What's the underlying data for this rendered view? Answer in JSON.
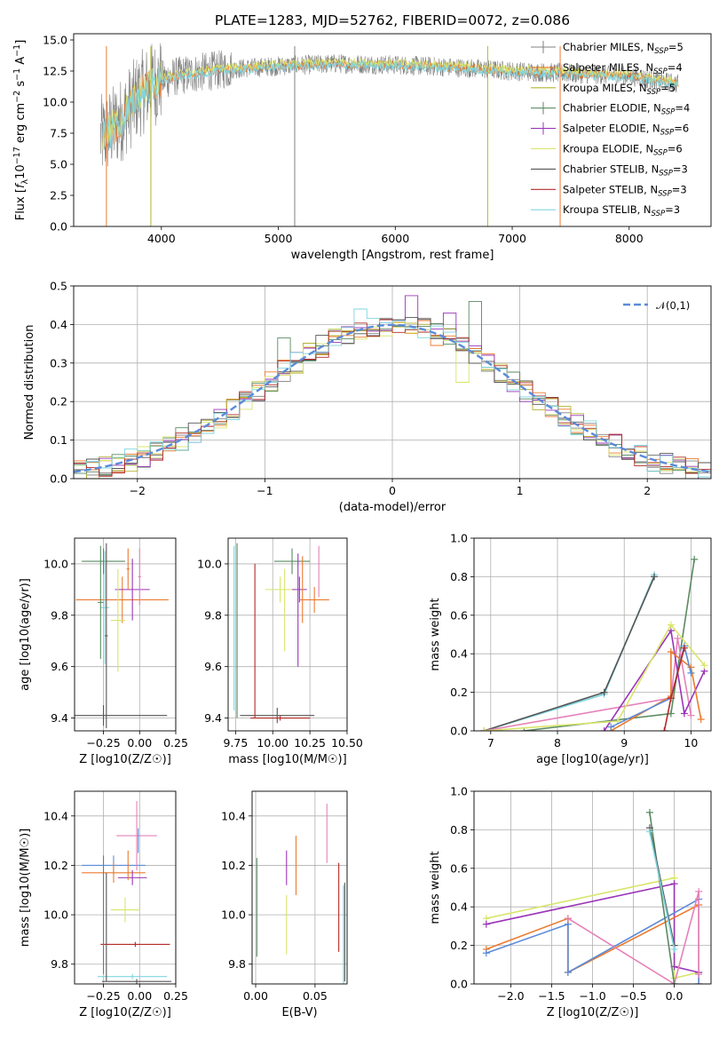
{
  "title": "PLATE=1283, MJD=52762, FIBERID=0072, z=0.086",
  "colors": {
    "gray": "#808080",
    "orange": "#ec7a2e",
    "olive": "#b5b331",
    "green": "#5a8a62",
    "purple": "#9a35b9",
    "yellow": "#d8e56a",
    "dark": "#555555",
    "red": "#b22a26",
    "cyan": "#7fd6df",
    "blue": "#5b8bd8",
    "pink": "#e581b9"
  },
  "legend": [
    {
      "label": "Chabrier MILES, N",
      "sub": "SSP",
      "tail": "=5",
      "color": "#808080",
      "marker": "plus"
    },
    {
      "label": "Salpeter MILES, N",
      "sub": "SSP",
      "tail": "=4",
      "color": "#ec7a2e",
      "marker": "line"
    },
    {
      "label": "Kroupa MILES, N",
      "sub": "SSP",
      "tail": "=5",
      "color": "#b5b331",
      "marker": "line"
    },
    {
      "label": "Chabrier ELODIE, N",
      "sub": "SSP",
      "tail": "=4",
      "color": "#5a8a62",
      "marker": "plus"
    },
    {
      "label": "Salpeter ELODIE, N",
      "sub": "SSP",
      "tail": "=6",
      "color": "#9a35b9",
      "marker": "plus"
    },
    {
      "label": "Kroupa ELODIE, N",
      "sub": "SSP",
      "tail": "=6",
      "color": "#d8e56a",
      "marker": "line"
    },
    {
      "label": "Chabrier STELIB, N",
      "sub": "SSP",
      "tail": "=3",
      "color": "#555555",
      "marker": "line"
    },
    {
      "label": "Salpeter STELIB, N",
      "sub": "SSP",
      "tail": "=3",
      "color": "#b22a26",
      "marker": "line"
    },
    {
      "label": "Kroupa STELIB, N",
      "sub": "SSP",
      "tail": "=3",
      "color": "#7fd6df",
      "marker": "line"
    }
  ],
  "chart_data": [
    {
      "type": "line",
      "panel": "spectrum",
      "xlabel": "wavelength [Angstrom, rest frame]",
      "ylabel": "Flux [f_λ 10^-17 erg cm^-2 s^-1 A^-1]",
      "ylabel_parts": [
        "Flux [",
        "f",
        "λ",
        "10",
        "−17",
        " erg cm",
        "−2",
        " s",
        "−1",
        " A",
        "−1",
        "]"
      ],
      "xlim": [
        3250,
        8700
      ],
      "ylim": [
        0,
        15.5
      ],
      "xticks": [
        4000,
        5000,
        6000,
        7000,
        8000
      ],
      "yticks": [
        "0.0",
        "2.5",
        "5.0",
        "7.5",
        "10.0",
        "12.5",
        "15.0"
      ],
      "ytick_values": [
        0,
        2.5,
        5,
        7.5,
        10,
        12.5,
        15
      ],
      "continuum": {
        "x": [
          3500,
          3650,
          3800,
          3900,
          4000,
          4200,
          4500,
          5000,
          5500,
          6000,
          6500,
          7000,
          7500,
          8000,
          8400
        ],
        "y": [
          7.2,
          8.5,
          10.5,
          11.3,
          11.8,
          12.2,
          12.6,
          12.9,
          13.1,
          13.0,
          12.8,
          12.5,
          12.3,
          12.1,
          11.5
        ]
      },
      "spikes": [
        {
          "x": 3530,
          "y": 0,
          "color": "#ec7a2e"
        },
        {
          "x": 3910,
          "y": 0,
          "color": "#b5b331"
        },
        {
          "x": 5140,
          "y": 0,
          "color": "#808080"
        },
        {
          "x": 6790,
          "y": 0,
          "color": "#b5b331"
        },
        {
          "x": 7410,
          "y": 0,
          "color": "#ec7a2e"
        }
      ]
    },
    {
      "type": "histogram",
      "panel": "residuals",
      "xlabel": "(data-model)/error",
      "ylabel": "Normed distribution",
      "xlim": [
        -2.5,
        2.5
      ],
      "ylim": [
        0,
        0.5
      ],
      "xticks": [
        "−2",
        "−1",
        "0",
        "1",
        "2"
      ],
      "xtick_values": [
        -2,
        -1,
        0,
        1,
        2
      ],
      "yticks": [
        "0.0",
        "0.1",
        "0.2",
        "0.3",
        "0.4",
        "0.5"
      ],
      "ytick_values": [
        0,
        0.1,
        0.2,
        0.3,
        0.4,
        0.5
      ],
      "bin_width": 0.1,
      "reference_curve": {
        "name": "𝒩(0,1)",
        "mu": 0,
        "sigma": 1,
        "color": "#5b8bd8"
      },
      "series_colors": [
        "#808080",
        "#ec7a2e",
        "#b5b331",
        "#5a8a62",
        "#9a35b9",
        "#d8e56a",
        "#555555",
        "#b22a26",
        "#7fd6df"
      ],
      "highlights": [
        {
          "x": -0.85,
          "y": 0.365,
          "color": "#5a8a62"
        },
        {
          "x": 0.15,
          "y": 0.475,
          "color": "#9a35b9"
        },
        {
          "x": 0.65,
          "y": 0.46,
          "color": "#5a8a62"
        },
        {
          "x": 0.45,
          "y": 0.43,
          "color": "#9a35b9"
        },
        {
          "x": -0.25,
          "y": 0.44,
          "color": "#7fd6df"
        },
        {
          "x": 0.55,
          "y": 0.25,
          "color": "#d8e56a"
        },
        {
          "x": 0.85,
          "y": 0.25,
          "color": "#9a35b9"
        }
      ]
    },
    {
      "type": "scatter",
      "panel": "age-vs-Z",
      "xlabel": "Z [log10(Z/Z☉)]",
      "ylabel": "age  [log10(age/yr)]",
      "xlim": [
        -0.45,
        0.25
      ],
      "ylim": [
        9.35,
        10.1
      ],
      "xticks": [
        "−0.25",
        "0.00",
        "0.25"
      ],
      "xtick_values": [
        -0.25,
        0,
        0.25
      ],
      "yticks": [
        "9.4",
        "9.6",
        "9.8",
        "10.0"
      ],
      "ytick_values": [
        9.4,
        9.6,
        9.8,
        10.0
      ],
      "errorbars": [
        {
          "x": -0.25,
          "y": 10.01,
          "xerr": 0.15,
          "yerr": 0.05,
          "color": "#5a8a62"
        },
        {
          "x": -0.25,
          "y": 9.41,
          "xerr": 0.44,
          "yerr": 0.04,
          "color": "#555555"
        },
        {
          "x": -0.12,
          "y": 9.86,
          "xerr": 0.32,
          "yerr": 0.09,
          "color": "#ec7a2e"
        },
        {
          "x": -0.05,
          "y": 9.9,
          "xerr": 0.12,
          "yerr": 0.12,
          "color": "#9a35b9"
        },
        {
          "x": -0.15,
          "y": 9.78,
          "xerr": 0.05,
          "yerr": 0.2,
          "color": "#d8e56a"
        },
        {
          "x": -0.24,
          "y": 9.83,
          "xerr": 0.03,
          "yerr": 0.22,
          "color": "#7fd6df"
        },
        {
          "x": -0.27,
          "y": 9.85,
          "xerr": 0.02,
          "yerr": 0.22,
          "color": "#5a8a62"
        },
        {
          "x": -0.23,
          "y": 9.72,
          "xerr": 0.01,
          "yerr": 0.36,
          "color": "#555555"
        },
        {
          "x": -0.08,
          "y": 9.98,
          "xerr": 0.01,
          "yerr": 0.08,
          "color": "#ec7a2e"
        },
        {
          "x": 0.0,
          "y": 9.95,
          "xerr": 0.01,
          "yerr": 0.11,
          "color": "#e581b9"
        }
      ]
    },
    {
      "type": "scatter",
      "panel": "age-vs-mass",
      "xlabel": "mass [log10(M/M☉)]",
      "xlim": [
        9.7,
        10.5
      ],
      "ylim": [
        9.35,
        10.1
      ],
      "xticks": [
        "9.75",
        "10.00",
        "10.25",
        "10.50"
      ],
      "xtick_values": [
        9.75,
        10.0,
        10.25,
        10.5
      ],
      "yticks": [
        "9.4",
        "9.6",
        "9.8",
        "10.0"
      ],
      "ytick_values": [
        9.4,
        9.6,
        9.8,
        10.0
      ],
      "errorbars": [
        {
          "x": 10.03,
          "y": 9.41,
          "xerr": 0.25,
          "yerr": 0.03,
          "color": "#555555"
        },
        {
          "x": 10.05,
          "y": 9.4,
          "xerr": 0.2,
          "yerr": 0.01,
          "color": "#b22a26"
        },
        {
          "x": 10.13,
          "y": 10.01,
          "xerr": 0.12,
          "yerr": 0.05,
          "color": "#5a8a62"
        },
        {
          "x": 10.05,
          "y": 9.9,
          "xerr": 0.1,
          "yerr": 0.05,
          "color": "#d8e56a"
        },
        {
          "x": 10.18,
          "y": 9.9,
          "xerr": 0.05,
          "yerr": 0.05,
          "color": "#9a35b9"
        },
        {
          "x": 10.28,
          "y": 9.86,
          "xerr": 0.1,
          "yerr": 0.05,
          "color": "#ec7a2e"
        },
        {
          "x": 9.74,
          "y": 9.75,
          "xerr": 0.0,
          "yerr": 0.32,
          "color": "#7fd6df"
        },
        {
          "x": 9.76,
          "y": 9.74,
          "xerr": 0.0,
          "yerr": 0.34,
          "color": "#5a8a62"
        },
        {
          "x": 9.88,
          "y": 9.7,
          "xerr": 0.0,
          "yerr": 0.3,
          "color": "#b22a26"
        },
        {
          "x": 10.08,
          "y": 9.82,
          "xerr": 0.0,
          "yerr": 0.16,
          "color": "#d8e56a"
        },
        {
          "x": 10.17,
          "y": 9.82,
          "xerr": 0.0,
          "yerr": 0.22,
          "color": "#9a35b9"
        },
        {
          "x": 10.2,
          "y": 9.9,
          "xerr": 0.0,
          "yerr": 0.13,
          "color": "#ec7a2e"
        },
        {
          "x": 10.31,
          "y": 9.97,
          "xerr": 0.0,
          "yerr": 0.1,
          "color": "#e581b9"
        }
      ]
    },
    {
      "type": "line",
      "panel": "weight-vs-age",
      "xlabel": "age  [log10(age/yr)]",
      "ylabel": "mass weight",
      "xlim": [
        6.75,
        10.3
      ],
      "ylim": [
        0,
        1
      ],
      "xticks": [
        "7",
        "8",
        "9",
        "10"
      ],
      "xtick_values": [
        7,
        8,
        9,
        10
      ],
      "yticks": [
        "0.0",
        "0.2",
        "0.4",
        "0.6",
        "0.8",
        "1.0"
      ],
      "ytick_values": [
        0,
        0.2,
        0.4,
        0.6,
        0.8,
        1.0
      ],
      "series": [
        {
          "color": "#7fd6df",
          "x": [
            6.9,
            8.7,
            9.45
          ],
          "y": [
            0.0,
            0.19,
            0.81
          ]
        },
        {
          "color": "#555555",
          "x": [
            6.9,
            8.7,
            9.45
          ],
          "y": [
            0.0,
            0.2,
            0.8
          ]
        },
        {
          "color": "#5a8a62",
          "x": [
            7.5,
            9.7,
            10.05
          ],
          "y": [
            0.0,
            0.09,
            0.89
          ]
        },
        {
          "color": "#e581b9",
          "x": [
            6.9,
            9.7,
            9.8,
            10.0
          ],
          "y": [
            0.0,
            0.17,
            0.48,
            0.08
          ]
        },
        {
          "color": "#9a35b9",
          "x": [
            8.7,
            9.7,
            9.9,
            10.2
          ],
          "y": [
            0.0,
            0.52,
            0.09,
            0.31
          ]
        },
        {
          "color": "#d8e56a",
          "x": [
            6.9,
            8.9,
            9.7,
            10.2
          ],
          "y": [
            0.0,
            0.05,
            0.55,
            0.34
          ]
        },
        {
          "color": "#ec7a2e",
          "x": [
            8.8,
            9.7,
            9.7,
            10.0,
            10.15
          ],
          "y": [
            0.0,
            0.18,
            0.41,
            0.33,
            0.06
          ]
        },
        {
          "color": "#5b8bd8",
          "x": [
            8.8,
            9.7,
            9.9,
            10.0
          ],
          "y": [
            0.02,
            0.17,
            0.44,
            0.3
          ]
        },
        {
          "color": "#b22a26",
          "x": [
            9.6,
            9.7,
            9.9
          ],
          "y": [
            0.0,
            0.17,
            0.43
          ]
        }
      ]
    },
    {
      "type": "scatter",
      "panel": "mass-vs-Z",
      "xlabel": "Z [log10(Z/Z☉)]",
      "ylabel": "mass [log10(M/M☉)]",
      "xlim": [
        -0.45,
        0.25
      ],
      "ylim": [
        9.72,
        10.5
      ],
      "xticks": [
        "−0.25",
        "0.00",
        "0.25"
      ],
      "xtick_values": [
        -0.25,
        0,
        0.25
      ],
      "yticks": [
        "9.8",
        "10.0",
        "10.2",
        "10.4"
      ],
      "ytick_values": [
        9.8,
        10.0,
        10.2,
        10.4
      ],
      "errorbars": [
        {
          "x": -0.18,
          "y": 10.2,
          "xerr": 0.22,
          "yerr": 0.04,
          "color": "#5b8bd8"
        },
        {
          "x": -0.18,
          "y": 10.17,
          "xerr": 0.22,
          "yerr": 0.04,
          "color": "#ec7a2e"
        },
        {
          "x": -0.05,
          "y": 10.15,
          "xerr": 0.1,
          "yerr": 0.03,
          "color": "#9a35b9"
        },
        {
          "x": -0.02,
          "y": 10.32,
          "xerr": 0.14,
          "yerr": 0.14,
          "color": "#e581b9"
        },
        {
          "x": -0.1,
          "y": 10.02,
          "xerr": 0.1,
          "yerr": 0.05,
          "color": "#d8e56a"
        },
        {
          "x": -0.03,
          "y": 9.88,
          "xerr": 0.24,
          "yerr": 0.01,
          "color": "#b22a26"
        },
        {
          "x": -0.05,
          "y": 9.75,
          "xerr": 0.24,
          "yerr": 0.01,
          "color": "#7fd6df"
        },
        {
          "x": -0.02,
          "y": 9.73,
          "xerr": 0.24,
          "yerr": 0.01,
          "color": "#555555"
        },
        {
          "x": -0.25,
          "y": 10.0,
          "xerr": 0.0,
          "yerr": 0.24,
          "color": "#5a8a62"
        },
        {
          "x": -0.23,
          "y": 9.95,
          "xerr": 0.0,
          "yerr": 0.22,
          "color": "#555555"
        },
        {
          "x": -0.08,
          "y": 10.2,
          "xerr": 0.0,
          "yerr": 0.06,
          "color": "#ec7a2e"
        },
        {
          "x": -0.01,
          "y": 10.3,
          "xerr": 0.0,
          "yerr": 0.05,
          "color": "#5b8bd8"
        }
      ]
    },
    {
      "type": "scatter",
      "panel": "mass-vs-EBV",
      "xlabel": "E(B-V)",
      "xlim": [
        -0.003,
        0.077
      ],
      "ylim": [
        9.72,
        10.5
      ],
      "xticks": [
        "0.00",
        "0.05"
      ],
      "xtick_values": [
        0,
        0.05
      ],
      "yticks": [
        "9.8",
        "10.0",
        "10.2",
        "10.4"
      ],
      "ytick_values": [
        9.8,
        10.0,
        10.2,
        10.4
      ],
      "errorbars": [
        {
          "x": 0.001,
          "y": 10.03,
          "xerr": 0,
          "yerr": 0.2,
          "color": "#5a8a62"
        },
        {
          "x": 0.026,
          "y": 10.19,
          "xerr": 0,
          "yerr": 0.07,
          "color": "#9a35b9"
        },
        {
          "x": 0.026,
          "y": 9.96,
          "xerr": 0,
          "yerr": 0.12,
          "color": "#d8e56a"
        },
        {
          "x": 0.034,
          "y": 10.2,
          "xerr": 0,
          "yerr": 0.12,
          "color": "#ec7a2e"
        },
        {
          "x": 0.06,
          "y": 10.33,
          "xerr": 0,
          "yerr": 0.12,
          "color": "#e581b9"
        },
        {
          "x": 0.07,
          "y": 10.03,
          "xerr": 0,
          "yerr": 0.18,
          "color": "#b22a26"
        },
        {
          "x": 0.074,
          "y": 9.92,
          "xerr": 0,
          "yerr": 0.2,
          "color": "#7fd6df"
        },
        {
          "x": 0.075,
          "y": 9.93,
          "xerr": 0,
          "yerr": 0.2,
          "color": "#555555"
        }
      ]
    },
    {
      "type": "line",
      "panel": "weight-vs-Z",
      "xlabel": "Z [log10(Z/Z☉)]",
      "ylabel": "mass weight",
      "xlim": [
        -2.45,
        0.45
      ],
      "ylim": [
        0,
        1
      ],
      "xticks": [
        "−2.0",
        "−1.5",
        "−1.0",
        "−0.5",
        "0.0"
      ],
      "xtick_values": [
        -2.0,
        -1.5,
        -1.0,
        -0.5,
        0.0
      ],
      "yticks": [
        "0.0",
        "0.2",
        "0.4",
        "0.6",
        "0.8",
        "1.0"
      ],
      "ytick_values": [
        0,
        0.2,
        0.4,
        0.6,
        0.8,
        1.0
      ],
      "series": [
        {
          "color": "#d8e56a",
          "x": [
            -2.3,
            0.0,
            0.0,
            0.3
          ],
          "y": [
            0.34,
            0.55,
            0.03,
            0.06
          ]
        },
        {
          "color": "#9a35b9",
          "x": [
            -2.3,
            0.0,
            0.0,
            0.3
          ],
          "y": [
            0.31,
            0.52,
            0.09,
            0.06
          ]
        },
        {
          "color": "#ec7a2e",
          "x": [
            -2.3,
            -1.3,
            -1.3,
            0.3,
            0.3
          ],
          "y": [
            0.18,
            0.34,
            0.06,
            0.41,
            0.0
          ]
        },
        {
          "color": "#5b8bd8",
          "x": [
            -2.3,
            -1.3,
            -1.3,
            0.3,
            0.3
          ],
          "y": [
            0.16,
            0.31,
            0.06,
            0.44,
            0.0
          ]
        },
        {
          "color": "#e581b9",
          "x": [
            -1.3,
            0.0,
            0.3,
            0.3
          ],
          "y": [
            0.34,
            0.0,
            0.48,
            0.05
          ]
        },
        {
          "color": "#5a8a62",
          "x": [
            -0.3,
            0.0
          ],
          "y": [
            0.89,
            0.0
          ]
        },
        {
          "color": "#555555",
          "x": [
            -0.3,
            0.0
          ],
          "y": [
            0.81,
            0.2
          ]
        },
        {
          "color": "#7fd6df",
          "x": [
            -0.3,
            0.0
          ],
          "y": [
            0.79,
            0.18
          ]
        }
      ]
    }
  ]
}
